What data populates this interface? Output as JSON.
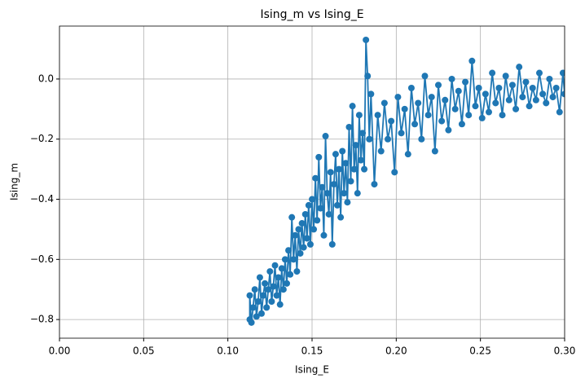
{
  "chart_data": {
    "type": "line",
    "title": "Ising_m vs Ising_E",
    "x_label": "Ising_E",
    "y_label": "Ising_m",
    "color": "#1f77b4",
    "grid": true,
    "markers": true,
    "xlim": [
      0,
      0.3
    ],
    "ylim": [
      -0.862,
      0.176
    ],
    "xticks": [
      {
        "value": 0,
        "label": "0.00"
      },
      {
        "value": 0.05,
        "label": "0.05"
      },
      {
        "value": 0.1,
        "label": "0.10"
      },
      {
        "value": 0.15,
        "label": "0.15"
      },
      {
        "value": 0.2,
        "label": "0.20"
      },
      {
        "value": 0.25,
        "label": "0.25"
      },
      {
        "value": 0.3,
        "label": "0.30"
      }
    ],
    "yticks": [
      {
        "value": -0.8,
        "label": "−0.8"
      },
      {
        "value": -0.6,
        "label": "−0.6"
      },
      {
        "value": -0.4,
        "label": "−0.4"
      },
      {
        "value": -0.2,
        "label": "−0.2"
      },
      {
        "value": 0,
        "label": "0.0"
      }
    ],
    "x": [
      0.113,
      0.113,
      0.114,
      0.115,
      0.116,
      0.117,
      0.118,
      0.119,
      0.12,
      0.121,
      0.122,
      0.123,
      0.124,
      0.125,
      0.126,
      0.127,
      0.128,
      0.129,
      0.13,
      0.131,
      0.132,
      0.133,
      0.134,
      0.135,
      0.136,
      0.137,
      0.138,
      0.139,
      0.14,
      0.141,
      0.142,
      0.143,
      0.144,
      0.145,
      0.146,
      0.147,
      0.148,
      0.149,
      0.15,
      0.151,
      0.152,
      0.153,
      0.154,
      0.155,
      0.156,
      0.157,
      0.158,
      0.159,
      0.16,
      0.161,
      0.162,
      0.163,
      0.164,
      0.165,
      0.166,
      0.167,
      0.168,
      0.169,
      0.17,
      0.171,
      0.172,
      0.173,
      0.174,
      0.175,
      0.176,
      0.177,
      0.178,
      0.179,
      0.18,
      0.181,
      0.182,
      0.183,
      0.184,
      0.185,
      0.187,
      0.189,
      0.191,
      0.193,
      0.195,
      0.197,
      0.199,
      0.201,
      0.203,
      0.205,
      0.207,
      0.209,
      0.211,
      0.213,
      0.215,
      0.217,
      0.219,
      0.221,
      0.223,
      0.225,
      0.227,
      0.229,
      0.231,
      0.233,
      0.235,
      0.237,
      0.239,
      0.241,
      0.243,
      0.245,
      0.247,
      0.249,
      0.251,
      0.253,
      0.255,
      0.257,
      0.259,
      0.261,
      0.263,
      0.265,
      0.267,
      0.269,
      0.271,
      0.273,
      0.275,
      0.277,
      0.279,
      0.281,
      0.283,
      0.285,
      0.287,
      0.289,
      0.291,
      0.293,
      0.295,
      0.297,
      0.299,
      0.3
    ],
    "values": [
      -0.8,
      -0.72,
      -0.81,
      -0.76,
      -0.7,
      -0.79,
      -0.74,
      -0.66,
      -0.78,
      -0.72,
      -0.68,
      -0.76,
      -0.7,
      -0.64,
      -0.74,
      -0.69,
      -0.62,
      -0.72,
      -0.66,
      -0.75,
      -0.63,
      -0.7,
      -0.6,
      -0.68,
      -0.57,
      -0.65,
      -0.46,
      -0.6,
      -0.52,
      -0.64,
      -0.5,
      -0.58,
      -0.48,
      -0.56,
      -0.45,
      -0.53,
      -0.42,
      -0.55,
      -0.4,
      -0.5,
      -0.33,
      -0.47,
      -0.26,
      -0.43,
      -0.36,
      -0.52,
      -0.19,
      -0.38,
      -0.45,
      -0.31,
      -0.55,
      -0.35,
      -0.25,
      -0.42,
      -0.3,
      -0.46,
      -0.24,
      -0.38,
      -0.28,
      -0.41,
      -0.16,
      -0.34,
      -0.09,
      -0.3,
      -0.22,
      -0.38,
      -0.12,
      -0.27,
      -0.18,
      -0.3,
      0.13,
      0.01,
      -0.2,
      -0.05,
      -0.35,
      -0.12,
      -0.24,
      -0.08,
      -0.2,
      -0.14,
      -0.31,
      -0.06,
      -0.18,
      -0.1,
      -0.25,
      -0.03,
      -0.15,
      -0.08,
      -0.2,
      0.01,
      -0.12,
      -0.06,
      -0.24,
      -0.02,
      -0.14,
      -0.07,
      -0.17,
      0,
      -0.1,
      -0.04,
      -0.15,
      -0.01,
      -0.12,
      0.06,
      -0.09,
      -0.03,
      -0.13,
      -0.05,
      -0.11,
      0.02,
      -0.08,
      -0.03,
      -0.12,
      0.01,
      -0.07,
      -0.02,
      -0.1,
      0.04,
      -0.06,
      -0.01,
      -0.09,
      -0.03,
      -0.07,
      0.02,
      -0.05,
      -0.08,
      0,
      -0.06,
      -0.03,
      -0.11,
      0.02,
      -0.05
    ]
  }
}
